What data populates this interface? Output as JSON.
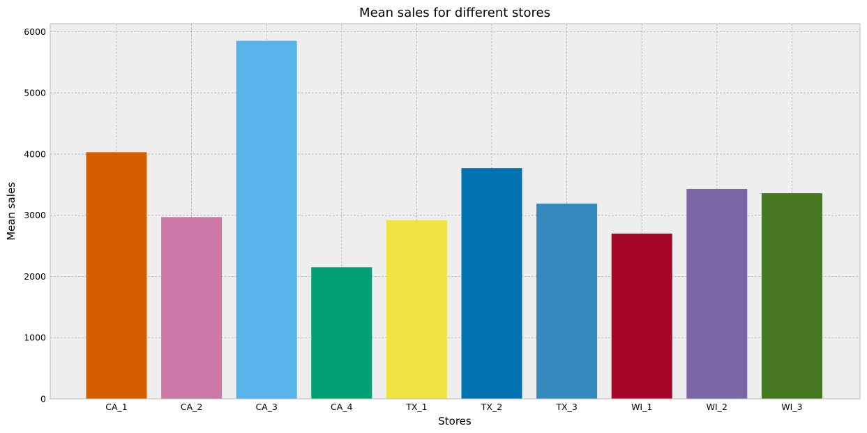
{
  "chart_data": {
    "type": "bar",
    "title": "Mean sales for different stores",
    "xlabel": "Stores",
    "ylabel": "Mean sales",
    "categories": [
      "CA_1",
      "CA_2",
      "CA_3",
      "CA_4",
      "TX_1",
      "TX_2",
      "TX_3",
      "WI_1",
      "WI_2",
      "WI_3"
    ],
    "values": [
      4030,
      2970,
      5850,
      2150,
      2920,
      3770,
      3190,
      2700,
      3430,
      3360
    ],
    "colors": [
      "#d55e00",
      "#cc79a7",
      "#56b4e9",
      "#009e73",
      "#f0e442",
      "#0072b2",
      "#348abd",
      "#a60628",
      "#7a68a6",
      "#467821"
    ],
    "ylim": [
      0,
      6130
    ],
    "yticks": [
      0,
      1000,
      2000,
      3000,
      4000,
      5000,
      6000
    ],
    "grid": true,
    "background": "#eeeeee"
  }
}
